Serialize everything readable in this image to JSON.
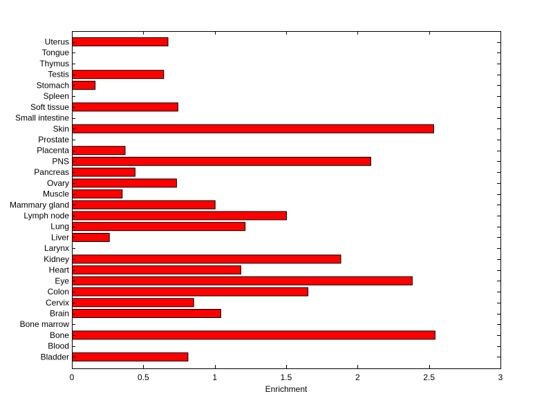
{
  "chart_data": {
    "type": "bar",
    "orientation": "horizontal",
    "title": "",
    "xlabel": "Enrichment",
    "ylabel": "",
    "xlim": [
      0,
      3
    ],
    "xticks": [
      0,
      0.5,
      1,
      1.5,
      2,
      2.5,
      3
    ],
    "xtick_labels": [
      "0",
      "0.5",
      "1",
      "1.5",
      "2",
      "2.5",
      "3"
    ],
    "grid": false,
    "legend": "none",
    "bar_color": "#ff0000",
    "edge_color": "#000000",
    "categories": [
      "Uterus",
      "Tongue",
      "Thymus",
      "Testis",
      "Stomach",
      "Spleen",
      "Soft tissue",
      "Small intestine",
      "Skin",
      "Prostate",
      "Placenta",
      "PNS",
      "Pancreas",
      "Ovary",
      "Muscle",
      "Mammary gland",
      "Lymph node",
      "Lung",
      "Liver",
      "Larynx",
      "Kidney",
      "Heart",
      "Eye",
      "Colon",
      "Cervix",
      "Brain",
      "Bone marrow",
      "Bone",
      "Blood",
      "Bladder"
    ],
    "values": [
      0.67,
      0,
      0,
      0.64,
      0.16,
      0,
      0.74,
      0,
      2.53,
      0,
      0.37,
      2.09,
      0.44,
      0.73,
      0.35,
      1.0,
      1.5,
      1.21,
      0.26,
      0,
      1.88,
      1.18,
      2.38,
      1.65,
      0.85,
      1.04,
      0,
      2.54,
      0,
      0.81
    ]
  }
}
